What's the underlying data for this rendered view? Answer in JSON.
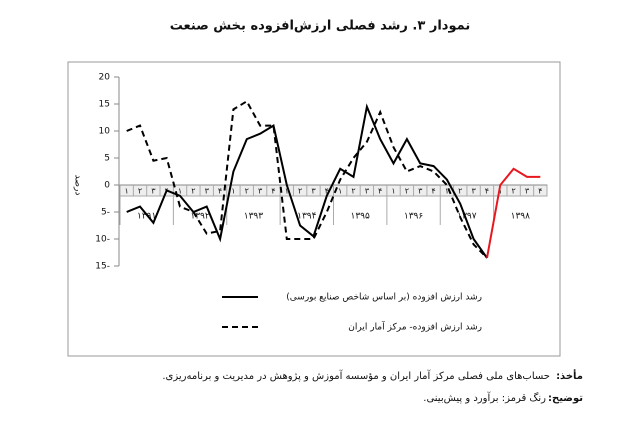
{
  "chart_data": {
    "type": "line",
    "title": "نمودار ۳. رشد فصلی ارزش‌افزوده بخش صنعت",
    "ylabel": "درصد",
    "categories": [
      "۱",
      "۲",
      "۳",
      "۴",
      "۱",
      "۲",
      "۳",
      "۴",
      "۱",
      "۲",
      "۳",
      "۴",
      "۱",
      "۲",
      "۳",
      "۴",
      "۱",
      "۲",
      "۳",
      "۴",
      "۱",
      "۲",
      "۳",
      "۴",
      "۱",
      "۲",
      "۳",
      "۴",
      "۱",
      "۲",
      "۳",
      "۴"
    ],
    "year_labels": [
      "۱۳۹۱",
      "۱۳۹۲",
      "۱۳۹۳",
      "۱۳۹۴",
      "۱۳۹۵",
      "۱۳۹۶",
      "۱۳۹۷",
      "۱۳۹۸"
    ],
    "ylim": [
      -15,
      20
    ],
    "yticks": [
      {
        "value": -15,
        "label": "15-"
      },
      {
        "value": -10,
        "label": "10-"
      },
      {
        "value": -5,
        "label": "5-"
      },
      0,
      5,
      10,
      15,
      20
    ],
    "series": [
      {
        "name": "رشد ارزش افزوده (بر اساس شاخص صنایع بورسی)",
        "color": "#000000",
        "dash": false,
        "values": [
          -5,
          -4,
          -7,
          -1,
          -2,
          -5,
          -4,
          -10,
          2.5,
          8.5,
          9.5,
          11,
          0,
          -7.5,
          -9.5,
          -2,
          3,
          1.5,
          14.5,
          8.5,
          4,
          8.5,
          4,
          3.5,
          1,
          -3.5,
          -10,
          -13.5,
          null,
          null,
          null,
          null
        ]
      },
      {
        "name": "رشد ارزش افزوده- مرکز آمار ایران",
        "color": "#000000",
        "dash": true,
        "values": [
          10,
          11,
          4.5,
          5,
          -4,
          -5,
          -9,
          -8.5,
          14,
          15.5,
          11,
          11,
          -10,
          -10,
          -10,
          -5,
          1,
          5,
          8,
          13.5,
          7,
          2.5,
          3.5,
          2.5,
          0,
          -6,
          -11,
          -13.5,
          null,
          null,
          null,
          null
        ]
      },
      {
        "color": "#e8171f",
        "dash": false,
        "values": [
          null,
          null,
          null,
          null,
          null,
          null,
          null,
          null,
          null,
          null,
          null,
          null,
          null,
          null,
          null,
          null,
          null,
          null,
          null,
          null,
          null,
          null,
          null,
          null,
          null,
          null,
          null,
          -13.5,
          0,
          3,
          1.5,
          1.5
        ]
      }
    ],
    "source_label": "مأخذ:",
    "source_text": "حساب‌های ملی فصلی مرکز آمار ایران و مؤسسه آموزش و پژوهش در مدیریت و برنامه‌ریزی.",
    "note_label": "توضیح:",
    "note_text": "رنگ قرمز: برآورد و پیش‌بینی."
  }
}
